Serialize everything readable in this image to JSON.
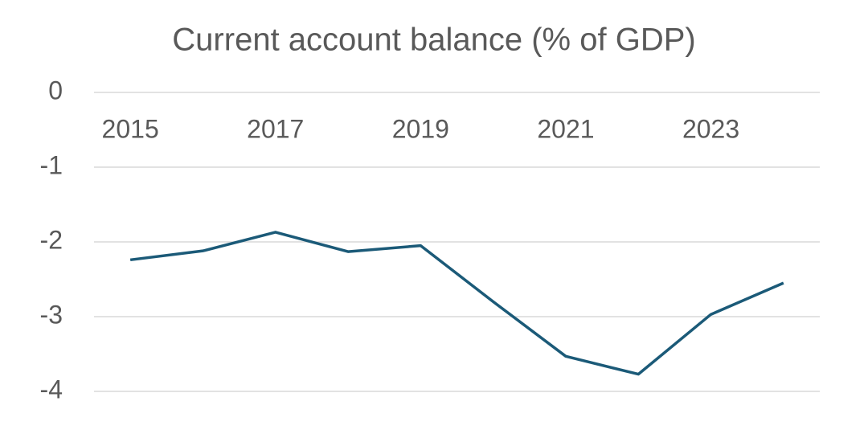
{
  "chart_data": {
    "type": "line",
    "title": "Current account balance (% of GDP)",
    "categories": [
      "2015",
      null,
      "2017",
      null,
      "2019",
      null,
      "2021",
      null,
      "2023",
      null
    ],
    "values": [
      -2.24,
      -2.12,
      -1.87,
      -2.13,
      -2.05,
      -2.8,
      -3.53,
      -3.77,
      -2.97,
      -2.55
    ],
    "color": "#1b5a78",
    "ylim": [
      -4,
      0
    ],
    "yticks": [
      -4,
      -3,
      -2,
      -1,
      0
    ],
    "grid": true
  }
}
